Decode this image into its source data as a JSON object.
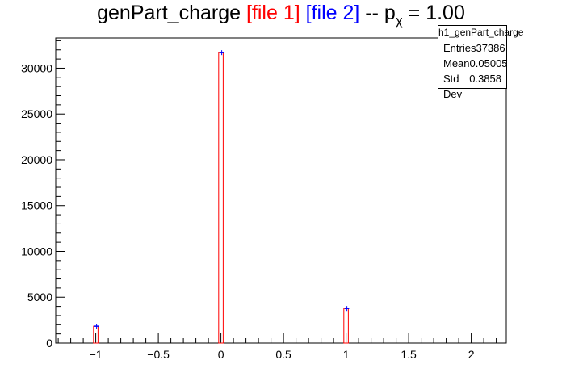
{
  "title": {
    "main": "genPart_charge ",
    "file1": "[file 1]",
    "file2": "[file 2]",
    "suffix_pre": " -- p",
    "subscript": "χ",
    "suffix_post": " = 1.00"
  },
  "stats": {
    "name": "h1_genPart_charge",
    "rows": [
      {
        "label": "Entries",
        "value": "37386"
      },
      {
        "label": "Mean",
        "value": "0.05005"
      },
      {
        "label": "Std Dev",
        "value": "0.3858"
      }
    ]
  },
  "colors": {
    "file1": "#ff0000",
    "file2": "#0000ff"
  },
  "chart_data": {
    "type": "bar",
    "title": "genPart_charge [file 1] [file 2] -- pχ = 1.00",
    "xlim": [
      -1.32,
      2.28
    ],
    "ylim": [
      0,
      33300
    ],
    "x_ticks": [
      -1,
      -0.5,
      0,
      0.5,
      1,
      1.5,
      2
    ],
    "x_tick_labels": [
      "−1",
      "−0.5",
      "0",
      "0.5",
      "1",
      "1.5",
      "2"
    ],
    "y_ticks": [
      0,
      5000,
      10000,
      15000,
      20000,
      25000,
      30000
    ],
    "y_tick_labels": [
      "0",
      "5000",
      "10000",
      "15000",
      "20000",
      "25000",
      "30000"
    ],
    "bin_width": 0.036,
    "series": [
      {
        "name": "file 1",
        "color": "#ff0000",
        "x": [
          -1,
          0,
          1
        ],
        "values": [
          1840,
          31700,
          3770
        ]
      },
      {
        "name": "file 2",
        "color": "#0000ff",
        "x": [
          -1,
          0,
          1
        ],
        "values": [
          1840,
          31700,
          3770
        ]
      }
    ],
    "grid": false
  }
}
